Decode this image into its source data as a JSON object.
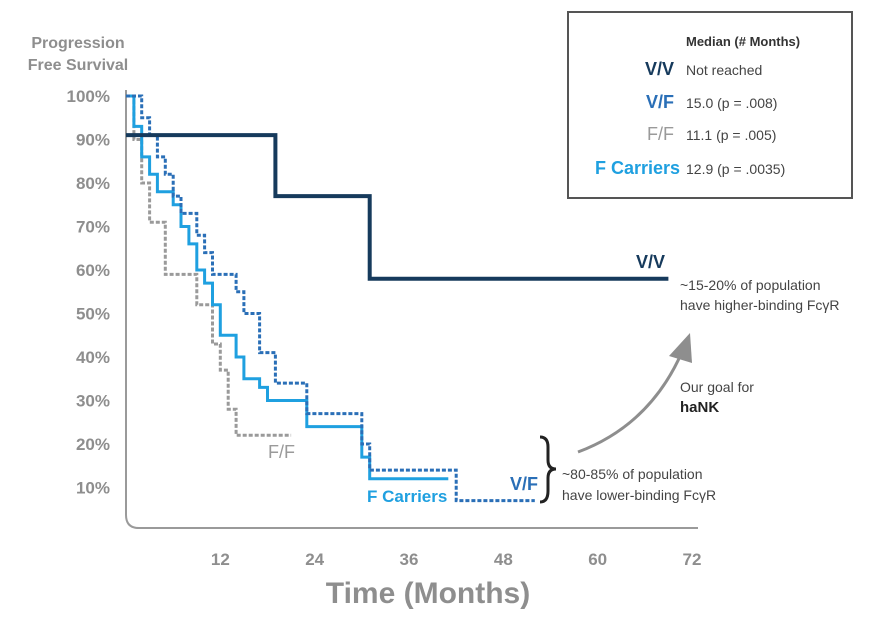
{
  "chart_data": {
    "type": "line",
    "step": true,
    "ylabel": [
      "Progression",
      "Free Survival"
    ],
    "xlabel": "Time (Months)",
    "xlim": [
      0,
      72
    ],
    "ylim": [
      0,
      100
    ],
    "x_ticks": [
      12,
      24,
      36,
      48,
      60,
      72
    ],
    "y_ticks": [
      10,
      20,
      30,
      40,
      50,
      60,
      70,
      80,
      90,
      100
    ],
    "y_tick_suffix": "%",
    "grid": false,
    "series": [
      {
        "name": "V/V",
        "color": "#163a5c",
        "dash": "solid",
        "x": [
          0,
          19,
          19,
          31,
          31,
          69
        ],
        "y": [
          91,
          91,
          77,
          77,
          58,
          58
        ]
      },
      {
        "name": "V/F",
        "color": "#2a6fb7",
        "dash": "dashed",
        "x": [
          0,
          2,
          2,
          3,
          3,
          4,
          4,
          5,
          5,
          6,
          6,
          7,
          7,
          9,
          9,
          10,
          10,
          11,
          11,
          14,
          14,
          15,
          15,
          17,
          17,
          19,
          19,
          23,
          23,
          30,
          30,
          31,
          31,
          42,
          42,
          52
        ],
        "y": [
          100,
          100,
          95,
          95,
          91,
          91,
          86,
          86,
          82,
          82,
          77,
          77,
          73,
          73,
          68,
          68,
          64,
          64,
          59,
          59,
          55,
          55,
          50,
          50,
          41,
          41,
          34,
          34,
          27,
          27,
          20,
          20,
          14,
          14,
          7,
          7
        ]
      },
      {
        "name": "F Carriers",
        "color": "#1fa0e0",
        "dash": "solid",
        "x": [
          0,
          1,
          1,
          2,
          2,
          3,
          3,
          4,
          4,
          6,
          6,
          7,
          7,
          8,
          8,
          9,
          9,
          10,
          10,
          11,
          11,
          12,
          12,
          14,
          14,
          15,
          15,
          17,
          17,
          18,
          18,
          23,
          23,
          30,
          30,
          31,
          31,
          41
        ],
        "y": [
          100,
          100,
          93,
          93,
          86,
          86,
          82,
          82,
          78,
          78,
          75,
          75,
          70,
          70,
          66,
          66,
          60,
          60,
          57,
          57,
          52,
          52,
          45,
          45,
          40,
          40,
          35,
          35,
          33,
          33,
          30,
          30,
          24,
          24,
          17,
          17,
          12,
          12
        ]
      },
      {
        "name": "F/F",
        "color": "#9a9a9a",
        "dash": "dashed",
        "x": [
          0,
          1,
          1,
          2,
          2,
          3,
          3,
          5,
          5,
          9,
          9,
          11,
          11,
          12,
          12,
          13,
          13,
          14,
          14,
          21
        ],
        "y": [
          100,
          100,
          90,
          90,
          80,
          80,
          71,
          71,
          59,
          59,
          52,
          52,
          43,
          43,
          37,
          37,
          28,
          28,
          22,
          22
        ]
      }
    ],
    "legend": {
      "header": "Median (# Months)",
      "placement": "top-right",
      "entries": [
        {
          "key": "V/V",
          "value": "Not reached",
          "color": "#163a5c"
        },
        {
          "key": "V/F",
          "value": "15.0 (p = .008)",
          "color": "#2a6fb7"
        },
        {
          "key": "F/F",
          "value": "11.1 (p = .005)",
          "color": "#9a9a9a"
        },
        {
          "key": "F Carriers",
          "value": "12.9 (p = .0035)",
          "color": "#1fa0e0"
        }
      ]
    },
    "annotations": {
      "vv_label": "V/V",
      "vv_note": [
        "~15-20% of population",
        "have higher-binding FcγR"
      ],
      "goal_line1": "Our goal for",
      "goal_line2": "haNK",
      "ff_label": "F/F",
      "fcarriers_label": "F Carriers",
      "vf_label": "V/F",
      "low_note": [
        "~80-85% of population",
        "have lower-binding FcγR"
      ]
    }
  }
}
